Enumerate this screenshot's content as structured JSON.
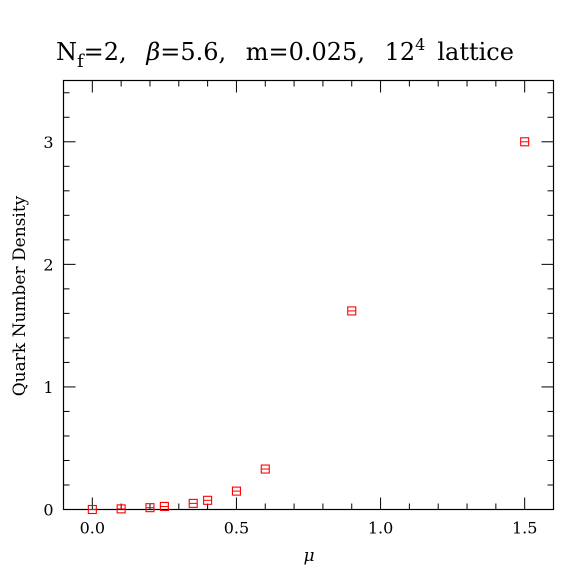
{
  "chart_data": {
    "type": "scatter",
    "title": {
      "text_nf_prefix": "N",
      "text_nf_sub": "f",
      "text_after_nf": "=2,",
      "text_beta_symbol": "β",
      "text_after_beta": "=5.6,",
      "text_mass": "m=0.025,",
      "text_lattice_base": "12",
      "text_lattice_exp": "4",
      "text_lattice_word": "lattice"
    },
    "xlabel": "μ",
    "ylabel": "Quark Number Density",
    "xlim": [
      -0.1,
      1.6
    ],
    "ylim": [
      0,
      3.5
    ],
    "x_ticks": [
      0.0,
      0.5,
      1.0,
      1.5
    ],
    "x_tick_labels": [
      "0.0",
      "0.5",
      "1.0",
      "1.5"
    ],
    "x_minor_ticks": [
      -0.1,
      0.1,
      0.2,
      0.3,
      0.4,
      0.6,
      0.7,
      0.8,
      0.9,
      1.1,
      1.2,
      1.3,
      1.4,
      1.6
    ],
    "y_ticks": [
      0,
      1,
      2,
      3
    ],
    "y_tick_labels": [
      "0",
      "1",
      "2",
      "3"
    ],
    "y_minor_ticks": [
      0.2,
      0.4,
      0.6,
      0.8,
      1.2,
      1.4,
      1.6,
      1.8,
      2.2,
      2.4,
      2.6,
      2.8,
      3.2,
      3.4
    ],
    "grid": false,
    "marker_color": "#ff0000",
    "marker_shape": "open-square",
    "series": [
      {
        "x": [
          0.0,
          0.1,
          0.2,
          0.25,
          0.35,
          0.4,
          0.5,
          0.6,
          0.9,
          1.5
        ],
        "y": [
          0.0,
          0.005,
          0.015,
          0.025,
          0.05,
          0.075,
          0.15,
          0.33,
          1.62,
          3.0
        ]
      }
    ]
  }
}
